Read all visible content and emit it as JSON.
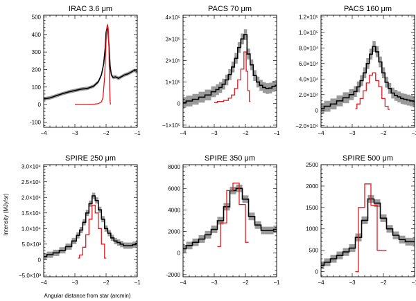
{
  "figure": {
    "ylabel": "Intensity (MJy/sr)",
    "xlabel": "Angular distance from star (arcmin)"
  },
  "chart_data": [
    {
      "type": "line",
      "title": "IRAC 3.6 μm",
      "xlim": [
        -4,
        -1
      ],
      "ylim": [
        -130,
        510
      ],
      "xticks": [
        -4,
        -3,
        -2,
        -1
      ],
      "yticks": [
        -100,
        0,
        100,
        200,
        300,
        400,
        500
      ],
      "ytick_labels": [
        "-100",
        "0",
        "100",
        "200",
        "300",
        "400",
        "500"
      ],
      "series": [
        {
          "color": "#000000",
          "style": "line",
          "band": "#9a9a9a",
          "x": [
            -4.0,
            -3.8,
            -3.6,
            -3.4,
            -3.2,
            -3.0,
            -2.8,
            -2.6,
            -2.4,
            -2.25,
            -2.15,
            -2.08,
            -2.03,
            -2.0,
            -1.97,
            -1.94,
            -1.9,
            -1.87,
            -1.83,
            -1.78,
            -1.7,
            -1.6,
            -1.5,
            -1.4,
            -1.3,
            -1.2,
            -1.1,
            -1.0
          ],
          "y": [
            32,
            38,
            50,
            62,
            72,
            80,
            88,
            92,
            105,
            130,
            170,
            230,
            320,
            410,
            440,
            420,
            320,
            220,
            170,
            155,
            158,
            150,
            160,
            170,
            175,
            185,
            195,
            190
          ],
          "err": 10
        },
        {
          "color": "#e8141b",
          "style": "line",
          "x": [
            -3.0,
            -2.6,
            -2.4,
            -2.25,
            -2.15,
            -2.1,
            -2.05,
            -2.0,
            -1.97,
            -1.95,
            -1.93,
            -1.91,
            -1.89,
            -1.87,
            -1.86
          ],
          "y": [
            0,
            0,
            2,
            5,
            15,
            40,
            150,
            360,
            450,
            455,
            430,
            320,
            120,
            20,
            0
          ]
        }
      ]
    },
    {
      "type": "line",
      "title": "PACS 70 μm",
      "xlim": [
        -4,
        -1
      ],
      "ylim": [
        -110000,
        410000
      ],
      "xticks": [
        -4,
        -3,
        -2,
        -1
      ],
      "yticks": [
        -100000,
        0,
        100000,
        200000,
        300000,
        400000
      ],
      "ytick_labels": [
        "−1×10⁵",
        "0",
        "1×10⁵",
        "2×10⁵",
        "3×10⁵",
        "4×10⁵"
      ],
      "series": [
        {
          "color": "#000000",
          "style": "step",
          "band": "#9a9a9a",
          "x": [
            -4.0,
            -3.8,
            -3.6,
            -3.4,
            -3.2,
            -3.0,
            -2.9,
            -2.8,
            -2.7,
            -2.6,
            -2.5,
            -2.4,
            -2.3,
            -2.2,
            -2.1,
            -2.0,
            -1.9,
            -1.8,
            -1.7,
            -1.6,
            -1.5,
            -1.4,
            -1.3,
            -1.2,
            -1.1,
            -1.0
          ],
          "y": [
            5000,
            12000,
            20000,
            30000,
            40000,
            55000,
            65000,
            75000,
            90000,
            110000,
            135000,
            170000,
            210000,
            260000,
            300000,
            320000,
            230000,
            180000,
            130000,
            100000,
            85000,
            75000,
            70000,
            72000,
            80000,
            85000
          ],
          "err": 25000
        },
        {
          "color": "#e8141b",
          "style": "step",
          "x": [
            -3.0,
            -2.8,
            -2.6,
            -2.5,
            -2.4,
            -2.3,
            -2.2,
            -2.1,
            -2.0,
            -1.95,
            -1.9,
            -1.85
          ],
          "y": [
            5000,
            10000,
            15000,
            25000,
            40000,
            70000,
            110000,
            160000,
            240000,
            150000,
            60000,
            10000
          ]
        }
      ]
    },
    {
      "type": "line",
      "title": "PACS 160 μm",
      "xlim": [
        -4,
        -1
      ],
      "ylim": [
        -22000,
        122000
      ],
      "xticks": [
        -4,
        -3,
        -2,
        -1
      ],
      "yticks": [
        -20000,
        0,
        20000,
        40000,
        60000,
        80000,
        100000,
        120000
      ],
      "ytick_labels": [
        "−2.0×10⁴",
        "0",
        "2.0×10⁴",
        "4.0×10⁴",
        "6.0×10⁴",
        "8.0×10⁴",
        "1.0×10⁵",
        "1.2×10⁵"
      ],
      "series": [
        {
          "color": "#000000",
          "style": "step",
          "band": "#9a9a9a",
          "x": [
            -4.0,
            -3.8,
            -3.6,
            -3.4,
            -3.2,
            -3.0,
            -2.9,
            -2.8,
            -2.7,
            -2.6,
            -2.5,
            -2.4,
            -2.3,
            -2.2,
            -2.1,
            -2.0,
            -1.9,
            -1.8,
            -1.7,
            -1.6,
            -1.5,
            -1.4,
            -1.3,
            -1.2,
            -1.1,
            -1.0
          ],
          "y": [
            2000,
            5000,
            8000,
            12000,
            16000,
            20000,
            24000,
            30000,
            38000,
            48000,
            60000,
            72000,
            82000,
            75000,
            62000,
            48000,
            36000,
            28000,
            22000,
            19000,
            17000,
            15000,
            14000,
            13000,
            12000,
            11000
          ],
          "err": 7000
        },
        {
          "color": "#e8141b",
          "style": "step",
          "x": [
            -2.9,
            -2.8,
            -2.7,
            -2.6,
            -2.5,
            -2.4,
            -2.3,
            -2.2,
            -2.1,
            -2.0,
            -1.9,
            -1.8
          ],
          "y": [
            2000,
            8000,
            15000,
            25000,
            35000,
            45000,
            48000,
            38000,
            30000,
            15000,
            5000,
            1000
          ]
        }
      ]
    },
    {
      "type": "line",
      "title": "SPIRE 250 μm",
      "xlim": [
        -4,
        -1
      ],
      "ylim": [
        -5500,
        30500
      ],
      "xticks": [
        -4,
        -3,
        -2,
        -1
      ],
      "yticks": [
        -5000,
        0,
        5000,
        10000,
        15000,
        20000,
        25000,
        30000
      ],
      "ytick_labels": [
        "−5.0×10³",
        "0",
        "5.0×10³",
        "1.0×10⁴",
        "1.5×10⁴",
        "2.0×10⁴",
        "2.5×10⁴",
        "3.0×10⁴"
      ],
      "series": [
        {
          "color": "#000000",
          "style": "step",
          "band": "#9a9a9a",
          "x": [
            -4.0,
            -3.8,
            -3.6,
            -3.4,
            -3.2,
            -3.0,
            -2.9,
            -2.8,
            -2.7,
            -2.6,
            -2.5,
            -2.4,
            -2.3,
            -2.2,
            -2.1,
            -2.0,
            -1.9,
            -1.8,
            -1.7,
            -1.6,
            -1.5,
            -1.4,
            -1.3,
            -1.2,
            -1.1,
            -1.0
          ],
          "y": [
            1000,
            1600,
            2200,
            3000,
            4200,
            6000,
            7800,
            9500,
            12000,
            15000,
            18000,
            20500,
            19000,
            16000,
            13000,
            10000,
            8500,
            7000,
            6000,
            5500,
            5000,
            4500,
            4500,
            4500,
            4800,
            5200
          ],
          "err": 1000
        },
        {
          "color": "#e8141b",
          "style": "step",
          "x": [
            -2.9,
            -2.8,
            -2.7,
            -2.6,
            -2.5,
            -2.4,
            -2.3,
            -2.2,
            -2.1,
            -2.0
          ],
          "y": [
            500,
            1500,
            4000,
            8000,
            13000,
            17500,
            15000,
            10000,
            5000,
            500
          ]
        }
      ]
    },
    {
      "type": "line",
      "title": "SPIRE 350 μm",
      "xlim": [
        -4,
        -1
      ],
      "ylim": [
        -2200,
        8200
      ],
      "xticks": [
        -4,
        -3,
        -2,
        -1
      ],
      "yticks": [
        -2000,
        0,
        2000,
        4000,
        6000,
        8000
      ],
      "ytick_labels": [
        "-2000",
        "0",
        "2000",
        "4000",
        "6000",
        "8000"
      ],
      "series": [
        {
          "color": "#000000",
          "style": "step",
          "band": "#9a9a9a",
          "x": [
            -4.0,
            -3.8,
            -3.6,
            -3.4,
            -3.2,
            -3.0,
            -2.8,
            -2.6,
            -2.4,
            -2.2,
            -2.0,
            -1.8,
            -1.6,
            -1.4,
            -1.2,
            -1.0
          ],
          "y": [
            400,
            700,
            1000,
            1300,
            1700,
            2200,
            3000,
            4300,
            5800,
            6000,
            5000,
            3400,
            2600,
            2100,
            2100,
            2200
          ],
          "err": 350
        },
        {
          "color": "#e8141b",
          "style": "step",
          "x": [
            -2.9,
            -2.7,
            -2.5,
            -2.3,
            -2.1,
            -1.9
          ],
          "y": [
            600,
            2800,
            5800,
            6500,
            4500,
            1000
          ]
        }
      ]
    },
    {
      "type": "line",
      "title": "SPIRE 500 μm",
      "xlim": [
        -4,
        -1
      ],
      "ylim": [
        -120,
        2500
      ],
      "xticks": [
        -4,
        -3,
        -2,
        -1
      ],
      "yticks": [
        0,
        500,
        1000,
        1500,
        2000,
        2500
      ],
      "ytick_labels": [
        "0",
        "500",
        "1000",
        "1500",
        "2000",
        "2500"
      ],
      "series": [
        {
          "color": "#000000",
          "style": "step",
          "band": "#9a9a9a",
          "x": [
            -4.0,
            -3.8,
            -3.6,
            -3.4,
            -3.2,
            -3.0,
            -2.8,
            -2.6,
            -2.4,
            -2.2,
            -2.0,
            -1.8,
            -1.6,
            -1.4,
            -1.2,
            -1.0
          ],
          "y": [
            150,
            220,
            300,
            380,
            460,
            550,
            800,
            1200,
            1700,
            1600,
            1250,
            1000,
            850,
            750,
            700,
            700
          ],
          "err": 90
        },
        {
          "color": "#e8141b",
          "style": "step",
          "x": [
            -2.9,
            -2.7,
            -2.5,
            -2.3,
            -2.1,
            -1.9
          ],
          "y": [
            0,
            1500,
            2050,
            1550,
            500,
            500
          ]
        }
      ]
    }
  ]
}
